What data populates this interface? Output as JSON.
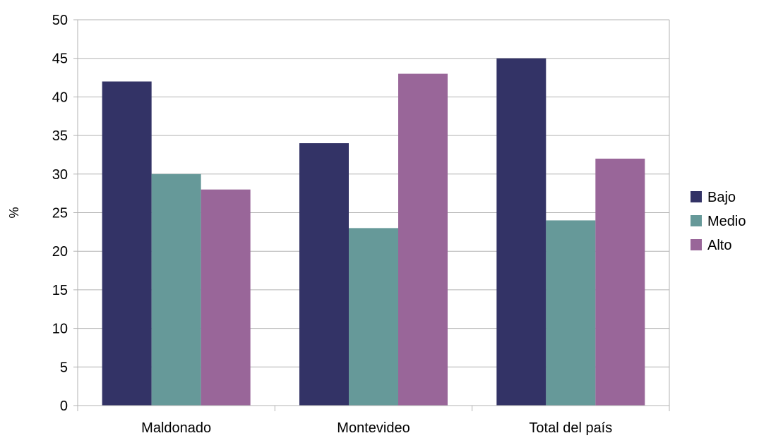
{
  "chart_data": {
    "type": "bar",
    "title": "",
    "xlabel": "",
    "ylabel": "%",
    "categories": [
      "Maldonado",
      "Montevideo",
      "Total del país"
    ],
    "series": [
      {
        "name": "Bajo",
        "values": [
          42,
          34,
          45
        ],
        "color": "#333366"
      },
      {
        "name": "Medio",
        "values": [
          30,
          23,
          24
        ],
        "color": "#669999"
      },
      {
        "name": "Alto",
        "values": [
          28,
          43,
          32
        ],
        "color": "#996699"
      }
    ],
    "ylim": [
      0,
      50
    ],
    "yticks": [
      0,
      5,
      10,
      15,
      20,
      25,
      30,
      35,
      40,
      45,
      50
    ],
    "grid": true,
    "legend_position": "right",
    "colors": {
      "gridline": "#b3b3b3",
      "axis": "#b3b3b3"
    }
  }
}
